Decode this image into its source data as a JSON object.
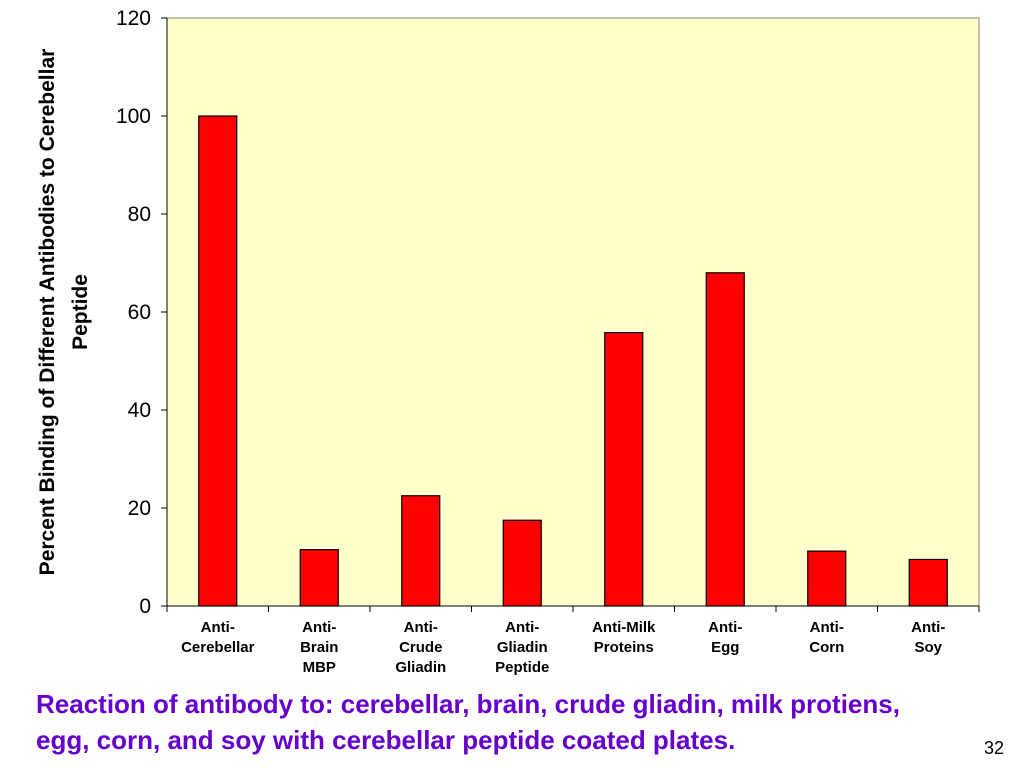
{
  "chart_data": {
    "type": "bar",
    "categories": [
      [
        "Anti-",
        "Cerebellar"
      ],
      [
        "Anti-",
        "Brain",
        "MBP"
      ],
      [
        "Anti-",
        "Crude",
        "Gliadin"
      ],
      [
        "Anti-",
        "Gliadin",
        "Peptide"
      ],
      [
        "Anti-Milk",
        "Proteins"
      ],
      [
        "Anti-",
        "Egg"
      ],
      [
        "Anti-",
        "Corn"
      ],
      [
        "Anti-",
        "Soy"
      ]
    ],
    "values": [
      100,
      11.5,
      22.5,
      17.5,
      55.8,
      68,
      11.2,
      9.5
    ],
    "ylabel_lines": [
      "Percent Binding of Different Antibodies to Cerebellar",
      "Peptide"
    ],
    "xlabel": "",
    "ylim": [
      0,
      120
    ],
    "yticks": [
      0,
      20,
      40,
      60,
      80,
      100,
      120
    ],
    "grid": false,
    "legend": "none",
    "colors": {
      "bar": "#ff0000",
      "plot_background": "#ffffcc",
      "caption": "#6600cc"
    }
  },
  "caption": {
    "line1": "Reaction of antibody to: cerebellar, brain, crude gliadin, milk protiens,",
    "line2": "egg, corn, and soy with cerebellar peptide coated plates."
  },
  "page_number": "32"
}
